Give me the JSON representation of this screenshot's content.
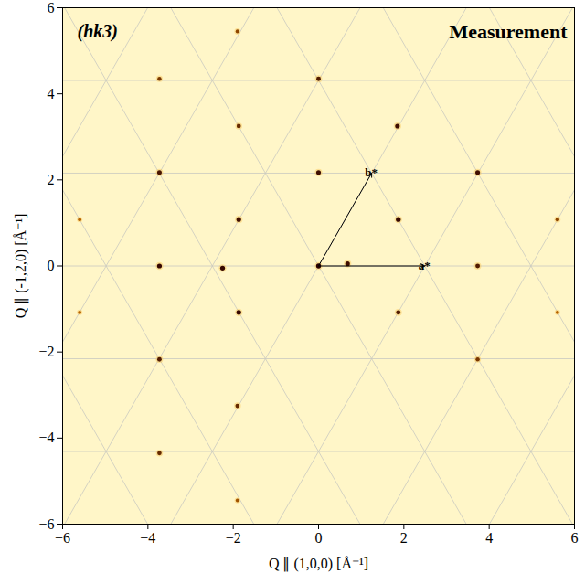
{
  "chart_data": {
    "type": "scatter",
    "label": "(hk3)",
    "title": "Measurement",
    "x_label": "Q ∥ (1,0,0) [Å⁻¹]",
    "y_label": "Q ∥ (-1,2,0) [Å⁻¹]",
    "xlim": [
      -6,
      6
    ],
    "ylim": [
      -6,
      6
    ],
    "xticks": [
      -6,
      -4,
      -2,
      0,
      2,
      4,
      6
    ],
    "yticks": [
      -6,
      -4,
      -2,
      0,
      2,
      4,
      6
    ],
    "grid": true,
    "color": "#2b0000",
    "points": [
      {
        "x": 0,
        "y": 0,
        "intensity": 1.0
      },
      {
        "x": 0.68,
        "y": 0.05,
        "intensity": 0.9
      },
      {
        "x": -2.25,
        "y": -0.05,
        "intensity": 0.95
      },
      {
        "x": 0,
        "y": 2.17,
        "intensity": 0.9
      },
      {
        "x": 0,
        "y": 4.35,
        "intensity": 0.8
      },
      {
        "x": 1.87,
        "y": 1.08,
        "intensity": 0.95
      },
      {
        "x": 1.85,
        "y": 3.25,
        "intensity": 0.9
      },
      {
        "x": 1.87,
        "y": -1.08,
        "intensity": 0.8
      },
      {
        "x": 3.73,
        "y": 2.17,
        "intensity": 0.9
      },
      {
        "x": 3.73,
        "y": 0,
        "intensity": 0.8
      },
      {
        "x": 3.73,
        "y": -2.17,
        "intensity": 0.6
      },
      {
        "x": 5.6,
        "y": 1.08,
        "intensity": 0.5
      },
      {
        "x": 5.6,
        "y": -1.08,
        "intensity": 0.3
      },
      {
        "x": -1.87,
        "y": 1.08,
        "intensity": 0.9
      },
      {
        "x": -1.87,
        "y": 3.25,
        "intensity": 0.7
      },
      {
        "x": -1.9,
        "y": 5.45,
        "intensity": 0.5
      },
      {
        "x": -1.87,
        "y": -1.08,
        "intensity": 0.95
      },
      {
        "x": -1.9,
        "y": -3.25,
        "intensity": 0.7
      },
      {
        "x": -1.9,
        "y": -5.45,
        "intensity": 0.4
      },
      {
        "x": -3.73,
        "y": 0,
        "intensity": 0.95
      },
      {
        "x": -3.73,
        "y": 2.17,
        "intensity": 0.85
      },
      {
        "x": -3.73,
        "y": 4.35,
        "intensity": 0.6
      },
      {
        "x": -3.73,
        "y": -2.17,
        "intensity": 0.8
      },
      {
        "x": -3.73,
        "y": -4.35,
        "intensity": 0.7
      },
      {
        "x": -5.6,
        "y": 1.08,
        "intensity": 0.3
      },
      {
        "x": -5.6,
        "y": -1.08,
        "intensity": 0.3
      }
    ],
    "lattice": {
      "origin": [
        0,
        0
      ],
      "a_star": [
        2.49,
        0
      ],
      "b_star": [
        1.245,
        2.156
      ]
    },
    "vector_labels": {
      "a_star": "a*",
      "b_star": "b*"
    }
  }
}
